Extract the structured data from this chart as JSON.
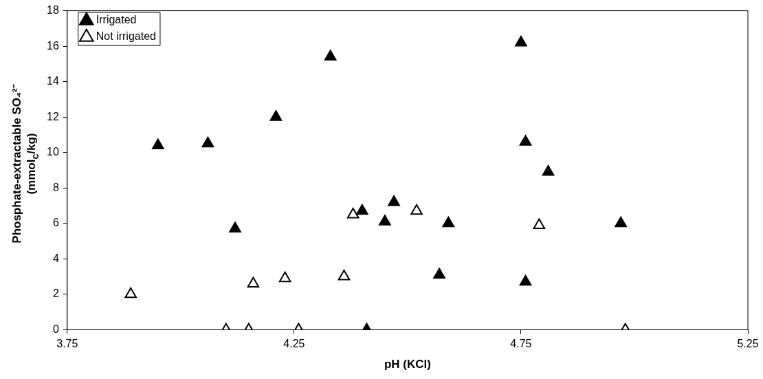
{
  "chart_data": {
    "type": "scatter",
    "xlabel": "pH (KCl)",
    "ylabel": "Phosphate-extractable SO₄²⁻\n(mmol$_{c}$/kg)",
    "xlim": [
      3.75,
      5.25
    ],
    "xticks": [
      3.75,
      4.25,
      4.75,
      5.25
    ],
    "ylim": [
      0,
      18
    ],
    "yticks": [
      0,
      2,
      4,
      6,
      8,
      10,
      12,
      14,
      16,
      18
    ],
    "grid": false,
    "legend": "top left",
    "marker": "triangle",
    "series": [
      {
        "name": "Irrigated",
        "color": "#000000",
        "x": [
          3.95,
          4.06,
          4.21,
          4.33,
          4.12,
          4.4,
          4.47,
          4.45,
          4.41,
          4.75,
          4.76,
          4.81,
          4.59,
          4.57,
          4.76,
          4.97
        ],
        "values": [
          10.4,
          10.5,
          12.0,
          15.4,
          5.7,
          6.7,
          7.2,
          6.1,
          0,
          16.2,
          10.6,
          8.9,
          6.0,
          3.1,
          2.7,
          6.0
        ]
      },
      {
        "name": "Not irrigated",
        "color": "#ffffff",
        "x": [
          3.89,
          4.16,
          4.23,
          4.36,
          4.38,
          4.52,
          4.1,
          4.15,
          4.26,
          4.79,
          4.98
        ],
        "values": [
          2.0,
          2.6,
          2.9,
          3.0,
          6.5,
          6.7,
          0,
          0,
          0,
          5.9,
          0
        ]
      }
    ]
  }
}
